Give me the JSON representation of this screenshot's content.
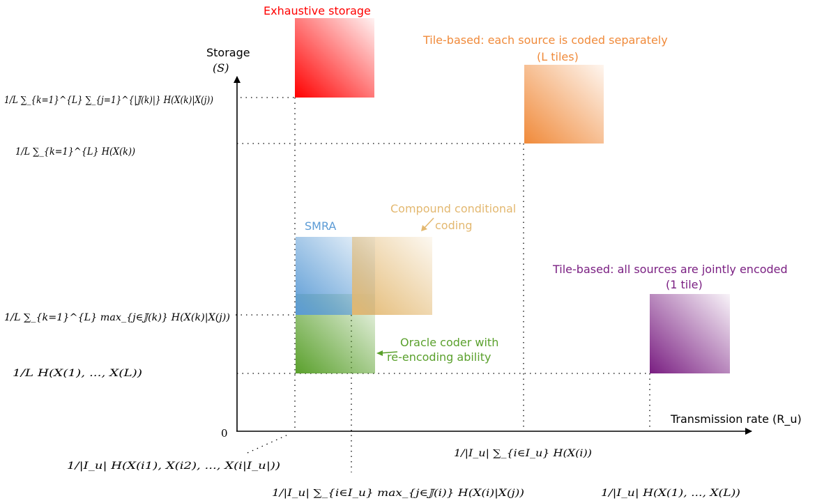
{
  "axes": {
    "y_title": "Storage",
    "y_symbol": "(S)",
    "x_title": "Transmission rate (R_u)",
    "origin": "0"
  },
  "regions": {
    "exhaustive": {
      "label": "Exhaustive storage",
      "color": "#ff0000"
    },
    "tile_separate": {
      "label_line1": "Tile-based: each source is coded separately",
      "label_line2": "(L tiles)",
      "color": "#f08a3a"
    },
    "smra": {
      "label": "SMRA",
      "color": "#5b9bd5"
    },
    "compound": {
      "label_line1": "Compound conditional",
      "label_line2": "coding",
      "color": "#e3b870"
    },
    "oracle": {
      "label_line1": "Oracle coder with",
      "label_line2": "re-encoding ability",
      "color": "#5aa02c"
    },
    "tile_joint": {
      "label_line1": "Tile-based: all sources are jointly encoded",
      "label_line2": "(1 tile)",
      "color": "#7a1f82"
    }
  },
  "y_levels": {
    "level1": "1/L ∑_{k=1}^{L} ∑_{j=1}^{|𝕁(k)|} H(X(k)|X(j))",
    "level2": "1/L ∑_{k=1}^{L} H(X(k))",
    "level3": "1/L ∑_{k=1}^{L} max_{j∈𝕁(k)} H(X(k)|X(j))",
    "level4": "1/L H(X(1), ..., X(L))"
  },
  "x_levels": {
    "level1": "1/|I_u| H(X(i1), X(i2), ..., X(i|I_u|))",
    "level2": "1/|I_u| ∑_{i∈I_u} max_{j∈𝕁(i)} H(X(i)|X(j))",
    "level3": "1/|I_u| ∑_{i∈I_u} H(X(i))",
    "level4": "1/|I_u| H(X(1), ..., X(L))"
  }
}
